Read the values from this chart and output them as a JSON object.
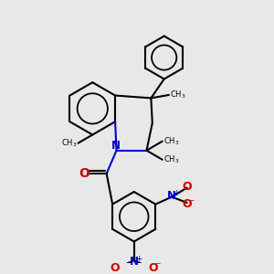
{
  "bg_color": "#e8e8e8",
  "bond_color": "#000000",
  "nitrogen_color": "#0000cc",
  "oxygen_color": "#cc0000",
  "lw": 1.5,
  "fig_size": [
    3.0,
    3.0
  ],
  "dpi": 100,
  "xlim": [
    0,
    10
  ],
  "ylim": [
    0,
    10
  ]
}
